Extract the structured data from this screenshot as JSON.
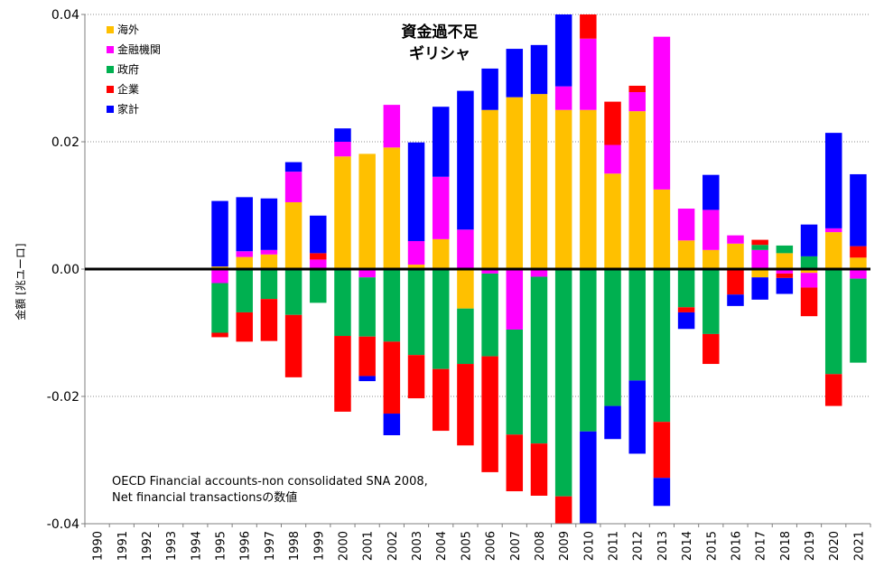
{
  "chart_data": {
    "type": "bar",
    "stacked": true,
    "title_lines": [
      "資金過不足",
      "ギリシャ"
    ],
    "ylabel": "金額 [兆ユーロ]",
    "xlabel": "",
    "ylim": [
      -0.04,
      0.04
    ],
    "yticks": [
      0.04,
      0.02,
      0.0,
      -0.02,
      -0.04
    ],
    "ytick_labels": [
      "0.04",
      "0.02",
      "0.00",
      "-0.02",
      "-0.04"
    ],
    "grid": true,
    "legend_position": "top-left",
    "note_lines": [
      "OECD Financial accounts-non consolidated SNA 2008,",
      "Net financial transactionsの数値"
    ],
    "categories": [
      "1990",
      "1991",
      "1992",
      "1993",
      "1994",
      "1995",
      "1996",
      "1997",
      "1998",
      "1999",
      "2000",
      "2001",
      "2002",
      "2003",
      "2004",
      "2005",
      "2006",
      "2007",
      "2008",
      "2009",
      "2010",
      "2011",
      "2012",
      "2013",
      "2014",
      "2015",
      "2016",
      "2017",
      "2018",
      "2019",
      "2020",
      "2021"
    ],
    "series": [
      {
        "name": "海外",
        "color": "#FFC000",
        "values": [
          0,
          0,
          0,
          0,
          0,
          0.0004,
          0.0019,
          0.0023,
          0.0105,
          0,
          0.0177,
          0.0181,
          0.0191,
          0.0007,
          0.0047,
          -0.0062,
          0.025,
          0.027,
          0.0275,
          0.025,
          0.025,
          0.015,
          0.0248,
          0.0125,
          0.0045,
          0.003,
          0.004,
          -0.0013,
          0.0025,
          -0.0006,
          0.0058,
          0.0018
        ]
      },
      {
        "name": "金融機関",
        "color": "#FF00FF",
        "values": [
          0,
          0,
          0,
          0,
          0,
          -0.0022,
          0.0009,
          0.0007,
          0.0048,
          0.0015,
          0.0023,
          -0.0013,
          0.0067,
          0.0037,
          0.0098,
          0.0062,
          -0.0007,
          -0.0095,
          -0.0012,
          0.0037,
          0.0112,
          0.0045,
          0.003,
          0.024,
          0.005,
          0.0063,
          0.0013,
          0.003,
          -0.0007,
          -0.0023,
          0.0006,
          -0.0015
        ]
      },
      {
        "name": "政府",
        "color": "#00B050",
        "values": [
          0,
          0,
          0,
          0,
          0,
          -0.0078,
          -0.0068,
          -0.0047,
          -0.0072,
          -0.0053,
          -0.0105,
          -0.0093,
          -0.0114,
          -0.0135,
          -0.0157,
          -0.0087,
          -0.013,
          -0.0165,
          -0.0262,
          -0.0357,
          -0.0255,
          -0.0215,
          -0.0175,
          -0.024,
          -0.006,
          -0.0102,
          0,
          0.0008,
          0.0012,
          0.002,
          -0.0165,
          -0.0132
        ]
      },
      {
        "name": "企業",
        "color": "#FF0000",
        "values": [
          0,
          0,
          0,
          0,
          0,
          -0.0007,
          -0.0046,
          -0.0066,
          -0.0098,
          0.001,
          -0.0119,
          -0.0062,
          -0.0113,
          -0.0068,
          -0.0097,
          -0.0128,
          -0.0182,
          -0.0089,
          -0.0082,
          -0.0043,
          0.004,
          0.0068,
          0.001,
          -0.0088,
          -0.0008,
          -0.0047,
          -0.004,
          0.0008,
          -0.0007,
          -0.0045,
          -0.005,
          0.0018
        ]
      },
      {
        "name": "家計",
        "color": "#0000FF",
        "values": [
          0,
          0,
          0,
          0,
          0,
          0.0103,
          0.0085,
          0.0081,
          0.0015,
          0.0059,
          0.0021,
          -0.0008,
          -0.0034,
          0.0155,
          0.011,
          0.0218,
          0.0065,
          0.0076,
          0.0077,
          0.012,
          -0.0145,
          -0.0052,
          -0.0115,
          -0.0044,
          -0.0026,
          0.0055,
          -0.0018,
          -0.0035,
          -0.0025,
          0.005,
          0.015,
          0.0113
        ]
      }
    ]
  }
}
